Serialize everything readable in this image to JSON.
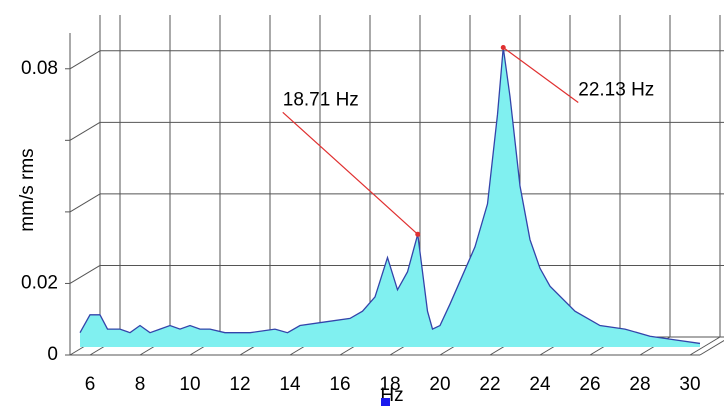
{
  "chart_data": {
    "type": "area",
    "x_label": "Hz",
    "y_label": "mm/s rms",
    "x": [
      5.2,
      5.6,
      6.0,
      6.3,
      6.8,
      7.2,
      7.6,
      8.0,
      8.4,
      8.8,
      9.2,
      9.6,
      10,
      10.4,
      11,
      12,
      13,
      13.5,
      14,
      15,
      16,
      16.5,
      17,
      17.5,
      17.9,
      18.3,
      18.71,
      19.1,
      19.3,
      19.6,
      20,
      20.5,
      21,
      21.5,
      21.9,
      22.13,
      22.4,
      22.8,
      23.2,
      23.6,
      24,
      25,
      26,
      27,
      28,
      29,
      30
    ],
    "series": [
      {
        "color": "#80f0f0",
        "values": [
          0.004,
          0.009,
          0.009,
          0.005,
          0.005,
          0.004,
          0.006,
          0.004,
          0.005,
          0.006,
          0.005,
          0.006,
          0.005,
          0.005,
          0.004,
          0.004,
          0.005,
          0.004,
          0.006,
          0.007,
          0.008,
          0.01,
          0.014,
          0.025,
          0.016,
          0.021,
          0.0315,
          0.01,
          0.005,
          0.006,
          0.012,
          0.02,
          0.028,
          0.04,
          0.065,
          0.0837,
          0.07,
          0.045,
          0.03,
          0.022,
          0.017,
          0.01,
          0.006,
          0.005,
          0.003,
          0.002,
          0.001
        ]
      }
    ],
    "line_color": "#3344aa",
    "xlim": [
      5.2,
      30.4
    ],
    "ylim": [
      0,
      0.09
    ],
    "xticks": [
      6,
      8,
      10,
      12,
      14,
      16,
      18,
      20,
      22,
      24,
      26,
      28,
      30
    ],
    "yticks": [
      0,
      0.02,
      0.08
    ],
    "minor_yticks": [
      0.04,
      0.06
    ],
    "grid": true,
    "annotations": [
      {
        "text": "18.71 Hz",
        "x": 18.71,
        "y": 0.0315
      },
      {
        "text": "22.13 Hz",
        "x": 22.13,
        "y": 0.0837
      }
    ],
    "annotation_color": "#e03030"
  }
}
